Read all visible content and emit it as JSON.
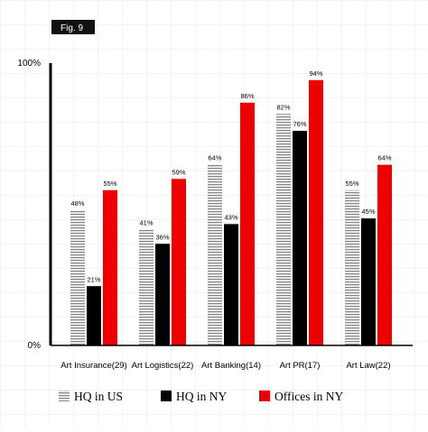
{
  "figure_label": "Fig. 9",
  "colors": {
    "hq_us": "#888888",
    "hq_ny": "#000000",
    "offices_ny": "#ee0000",
    "grid": "#e8e8e8",
    "axis": "#000000"
  },
  "chart_data": {
    "type": "bar",
    "categories": [
      "Art Insurance(29)",
      "Art Logistics(22)",
      "Art Banking(14)",
      "Art PR(17)",
      "Art Law(22)"
    ],
    "series": [
      {
        "name": "HQ in US",
        "values": [
          48,
          41,
          64,
          82,
          55
        ],
        "labels": [
          "48%",
          "41%",
          "64%",
          "82%",
          "55%"
        ],
        "pattern": "striped"
      },
      {
        "name": "HQ in NY",
        "values": [
          21,
          36,
          43,
          76,
          45
        ],
        "labels": [
          "21%",
          "36%",
          "43%",
          "76%",
          "45%"
        ],
        "pattern": "solid"
      },
      {
        "name": "Offices in NY",
        "values": [
          55,
          59,
          86,
          94,
          64
        ],
        "labels": [
          "55%",
          "59%",
          "86%",
          "94%",
          "64%"
        ],
        "pattern": "solid"
      }
    ],
    "ylim": [
      0,
      100
    ],
    "y_tick_labels": [
      "0%",
      "100%"
    ],
    "grid": true,
    "legend_position": "bottom"
  }
}
